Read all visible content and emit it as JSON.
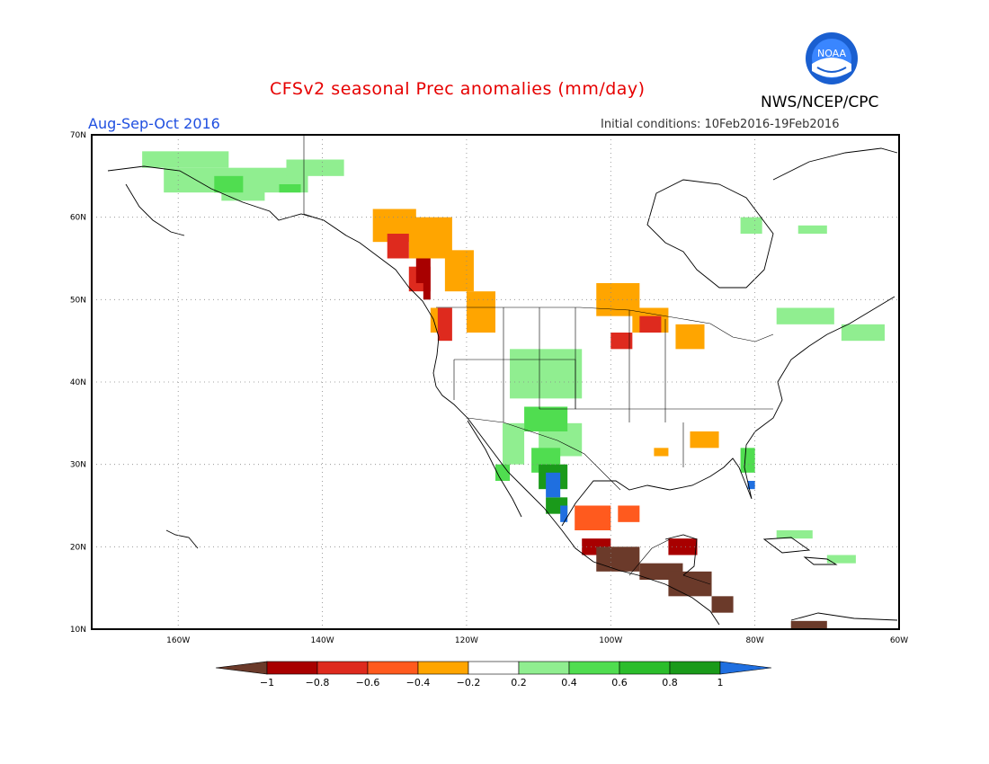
{
  "title": "CFSv2 seasonal Prec anomalies (mm/day)",
  "organization": "NWS/NCEP/CPC",
  "season_label": "Aug-Sep-Oct 2016",
  "initial_conditions": "Initial conditions: 10Feb2016-19Feb2016",
  "logo_text": "NOAA",
  "map": {
    "lon_range": [
      -172,
      -60
    ],
    "lat_range": [
      10,
      70
    ],
    "lon_ticks": [
      {
        "value": -160,
        "label": "160W"
      },
      {
        "value": -140,
        "label": "140W"
      },
      {
        "value": -120,
        "label": "120W"
      },
      {
        "value": -100,
        "label": "100W"
      },
      {
        "value": -80,
        "label": "80W"
      },
      {
        "value": -60,
        "label": "60W"
      }
    ],
    "lat_ticks": [
      {
        "value": 10,
        "label": "10N"
      },
      {
        "value": 20,
        "label": "20N"
      },
      {
        "value": 30,
        "label": "30N"
      },
      {
        "value": 40,
        "label": "40N"
      },
      {
        "value": 50,
        "label": "50N"
      },
      {
        "value": 60,
        "label": "60N"
      },
      {
        "value": 70,
        "label": "70N"
      }
    ],
    "grid": "dotted"
  },
  "colorbar": {
    "labels": [
      "-1",
      "-0.8",
      "-0.6",
      "-0.4",
      "-0.2",
      "0.2",
      "0.4",
      "0.6",
      "0.8",
      "1"
    ],
    "colors": [
      "#6b3a2a",
      "#a80000",
      "#de2a1e",
      "#ff5a1e",
      "#ffa500",
      "#ffffff",
      "#90ee90",
      "#50dd50",
      "#2bbd2b",
      "#1a9a1a",
      "#1f6fe0"
    ]
  },
  "anomaly_regions": [
    {
      "name": "alaska-wet",
      "color": "#90ee90",
      "cells": [
        [
          -165,
          66,
          12,
          2
        ],
        [
          -162,
          63,
          20,
          3
        ],
        [
          -154,
          62,
          6,
          2
        ],
        [
          -145,
          65,
          8,
          2
        ]
      ]
    },
    {
      "name": "alaska-wet-strong",
      "color": "#50dd50",
      "cells": [
        [
          -155,
          63,
          4,
          2
        ],
        [
          -146,
          63,
          3,
          1
        ]
      ]
    },
    {
      "name": "pacific-nw-dry",
      "color": "#ffa500",
      "cells": [
        [
          -133,
          57,
          6,
          4
        ],
        [
          -128,
          55,
          6,
          5
        ],
        [
          -123,
          51,
          4,
          5
        ],
        [
          -120,
          46,
          4,
          5
        ],
        [
          -125,
          46,
          2,
          3
        ]
      ]
    },
    {
      "name": "pacific-nw-very-dry",
      "color": "#de2a1e",
      "cells": [
        [
          -131,
          55,
          3,
          3
        ],
        [
          -128,
          51,
          3,
          3
        ],
        [
          -124,
          45,
          2,
          4
        ]
      ]
    },
    {
      "name": "pacific-nw-extreme-dry",
      "color": "#a80000",
      "cells": [
        [
          -127,
          52,
          2,
          3
        ],
        [
          -126,
          50,
          1,
          2
        ]
      ]
    },
    {
      "name": "northern-plains-dry",
      "color": "#ffa500",
      "cells": [
        [
          -102,
          48,
          6,
          4
        ],
        [
          -97,
          46,
          5,
          3
        ],
        [
          -91,
          44,
          4,
          3
        ]
      ]
    },
    {
      "name": "northern-plains-very-dry",
      "color": "#de2a1e",
      "cells": [
        [
          -96,
          46,
          3,
          2
        ],
        [
          -100,
          44,
          3,
          2
        ]
      ]
    },
    {
      "name": "southeast-dry",
      "color": "#ffa500",
      "cells": [
        [
          -89,
          32,
          4,
          2
        ],
        [
          -94,
          31,
          2,
          1
        ]
      ]
    },
    {
      "name": "southwest-wet",
      "color": "#90ee90",
      "cells": [
        [
          -114,
          38,
          10,
          6
        ],
        [
          -110,
          31,
          6,
          4
        ],
        [
          -115,
          30,
          3,
          5
        ]
      ]
    },
    {
      "name": "southwest-wet-strong",
      "color": "#50dd50",
      "cells": [
        [
          -112,
          34,
          6,
          3
        ],
        [
          -111,
          29,
          4,
          3
        ],
        [
          -116,
          28,
          2,
          2
        ]
      ]
    },
    {
      "name": "mexico-wet-strong",
      "color": "#1a9a1a",
      "cells": [
        [
          -110,
          27,
          4,
          3
        ],
        [
          -109,
          24,
          3,
          2
        ]
      ]
    },
    {
      "name": "mexico-very-wet",
      "color": "#1f6fe0",
      "cells": [
        [
          -109,
          26,
          2,
          3
        ],
        [
          -107,
          23,
          1,
          2
        ]
      ]
    },
    {
      "name": "florida-wet",
      "color": "#50dd50",
      "cells": [
        [
          -82,
          29,
          2,
          3
        ]
      ]
    },
    {
      "name": "florida-very-wet",
      "color": "#1f6fe0",
      "cells": [
        [
          -81,
          27,
          1,
          1
        ]
      ]
    },
    {
      "name": "mexico-gulf-dry",
      "color": "#ff5a1e",
      "cells": [
        [
          -105,
          22,
          5,
          3
        ],
        [
          -99,
          23,
          3,
          2
        ]
      ]
    },
    {
      "name": "mexico-south-very-dry",
      "color": "#a80000",
      "cells": [
        [
          -104,
          19,
          4,
          2
        ],
        [
          -92,
          19,
          4,
          2
        ]
      ]
    },
    {
      "name": "central-america-extreme-dry",
      "color": "#6b3a2a",
      "cells": [
        [
          -102,
          17,
          6,
          3
        ],
        [
          -96,
          16,
          6,
          2
        ],
        [
          -92,
          14,
          6,
          3
        ],
        [
          -86,
          12,
          3,
          2
        ],
        [
          -75,
          10,
          5,
          1
        ]
      ]
    },
    {
      "name": "eastern-canada-wet",
      "color": "#90ee90",
      "cells": [
        [
          -77,
          47,
          8,
          2
        ],
        [
          -68,
          45,
          6,
          2
        ],
        [
          -74,
          58,
          4,
          1
        ],
        [
          -82,
          58,
          3,
          2
        ]
      ]
    },
    {
      "name": "caribbean-wet",
      "color": "#90ee90",
      "cells": [
        [
          -77,
          21,
          5,
          1
        ],
        [
          -70,
          18,
          4,
          1
        ]
      ]
    }
  ]
}
